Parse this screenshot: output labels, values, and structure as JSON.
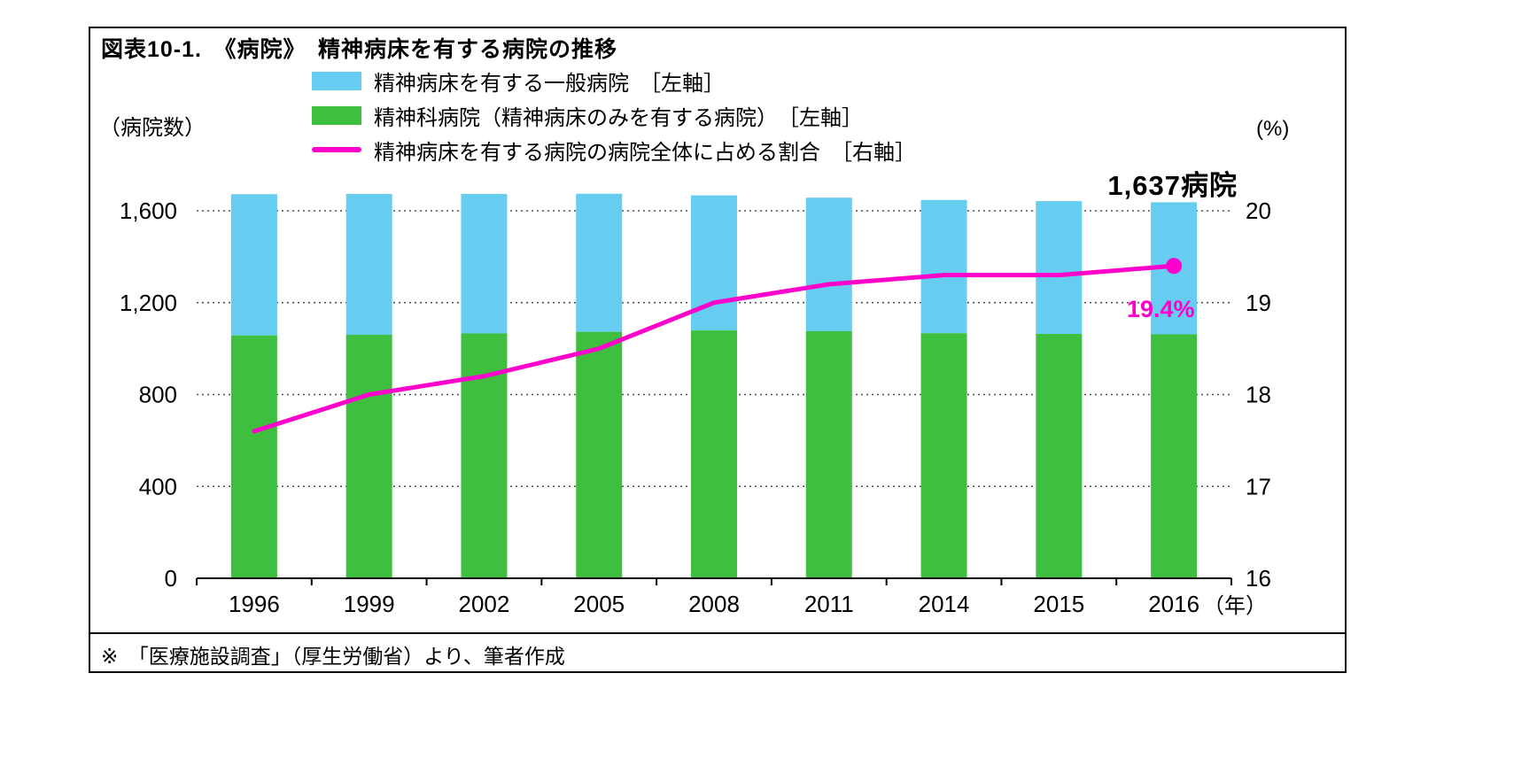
{
  "figure": {
    "title": "図表10-1.　《病院》　精神病床を有する病院の推移",
    "left_axis_unit": "（病院数）",
    "right_axis_unit": "(%)",
    "x_axis_unit": "（年）",
    "annotation_total": "1,637病院",
    "annotation_pct": "19.4%",
    "footnote": "※　「医療施設調査」（厚生労働省）より、筆者作成"
  },
  "legend": [
    {
      "label": "精神病床を有する一般病院　［左軸］",
      "color": "#66CCF0",
      "type": "rect"
    },
    {
      "label": "精神科病院（精神病床のみを有する病院）　［左軸］",
      "color": "#3FBF3F",
      "type": "rect"
    },
    {
      "label": "精神病床を有する病院の病院全体に占める割合　［右軸］",
      "color": "#FF00CC",
      "type": "line"
    }
  ],
  "chart_data": {
    "type": "bar",
    "subtype": "stacked-bars-with-line",
    "title": "精神病床を有する病院の推移",
    "categories": [
      "1996",
      "1999",
      "2002",
      "2005",
      "2008",
      "2011",
      "2014",
      "2015",
      "2016"
    ],
    "series": [
      {
        "name": "精神病床を有する一般病院",
        "type": "bar",
        "stack_position": "top",
        "axis": "left",
        "color": "#66CCF0",
        "values": [
          615,
          613,
          607,
          601,
          588,
          581,
          580,
          578,
          575
        ]
      },
      {
        "name": "精神科病院（精神病床のみを有する病院）",
        "type": "bar",
        "stack_position": "bottom",
        "axis": "left",
        "color": "#3FBF3F",
        "values": [
          1057,
          1060,
          1066,
          1073,
          1079,
          1076,
          1067,
          1064,
          1062
        ]
      },
      {
        "name": "精神病床を有する病院の病院全体に占める割合",
        "type": "line",
        "axis": "right",
        "color": "#FF00CC",
        "values": [
          17.6,
          18.0,
          18.2,
          18.5,
          19.0,
          19.2,
          19.3,
          19.3,
          19.4
        ]
      }
    ],
    "stacked_totals": [
      1672,
      1673,
      1673,
      1674,
      1667,
      1657,
      1647,
      1642,
      1637
    ],
    "left_axis": {
      "min": 0,
      "max": 1600,
      "ticks": [
        0,
        400,
        800,
        1200,
        1600
      ],
      "tick_labels": [
        "0",
        "400",
        "800",
        "1,200",
        "1,600"
      ],
      "unit": "病院数"
    },
    "right_axis": {
      "min": 16,
      "max": 20,
      "ticks": [
        16,
        17,
        18,
        19,
        20
      ],
      "unit": "%"
    },
    "grid": "horizontal-dotted",
    "legend_position": "top-left",
    "annotations": [
      {
        "text": "1,637病院",
        "target": "2016 stacked total"
      },
      {
        "text": "19.4%",
        "target": "2016 line value"
      }
    ]
  }
}
